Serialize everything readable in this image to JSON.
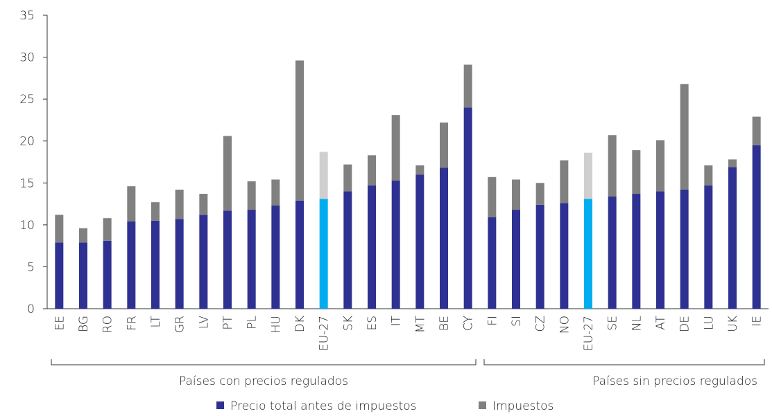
{
  "chart_data": {
    "type": "stacked_bar",
    "groups": [
      {
        "label": "Países con precios regulados",
        "categories": [
          "EE",
          "BG",
          "RO",
          "FR",
          "LT",
          "GR",
          "LV",
          "PT",
          "PL",
          "HU",
          "DK",
          "EU-27",
          "SK",
          "ES",
          "IT",
          "MT",
          "BE",
          "CY"
        ]
      },
      {
        "label": "Países sin precios regulados",
        "categories": [
          "FI",
          "SI",
          "CZ",
          "NO",
          "EU-27",
          "SE",
          "NL",
          "AT",
          "DE",
          "LU",
          "UK",
          "IE"
        ]
      }
    ],
    "series": [
      {
        "name": "Precio total antes de impuestos",
        "color": "#2e3192",
        "colors": [
          "#2e3192",
          "#2e3192",
          "#2e3192",
          "#2e3192",
          "#2e3192",
          "#2e3192",
          "#2e3192",
          "#2e3192",
          "#2e3192",
          "#2e3192",
          "#2e3192",
          "#00aeef",
          "#2e3192",
          "#2e3192",
          "#2e3192",
          "#2e3192",
          "#2e3192",
          "#2e3192",
          "#2e3192",
          "#2e3192",
          "#2e3192",
          "#2e3192",
          "#00aeef",
          "#2e3192",
          "#2e3192",
          "#2e3192",
          "#2e3192",
          "#2e3192",
          "#2e3192",
          "#2e3192"
        ],
        "values": [
          7.9,
          7.9,
          8.1,
          10.4,
          10.5,
          10.7,
          11.2,
          11.7,
          11.8,
          12.3,
          12.9,
          13.1,
          14.0,
          14.7,
          15.3,
          16.0,
          16.8,
          24.0,
          10.9,
          11.8,
          12.4,
          12.6,
          13.1,
          13.4,
          13.7,
          14.0,
          14.2,
          14.7,
          16.9,
          19.5
        ]
      },
      {
        "name": "Impuestos",
        "color": "#808080",
        "colors": [
          "#808080",
          "#808080",
          "#808080",
          "#808080",
          "#808080",
          "#808080",
          "#808080",
          "#808080",
          "#808080",
          "#808080",
          "#808080",
          "#cfcfcf",
          "#808080",
          "#808080",
          "#808080",
          "#808080",
          "#808080",
          "#808080",
          "#808080",
          "#808080",
          "#808080",
          "#808080",
          "#cfcfcf",
          "#808080",
          "#808080",
          "#808080",
          "#808080",
          "#808080",
          "#808080",
          "#808080"
        ],
        "values": [
          3.3,
          1.7,
          2.7,
          4.2,
          2.2,
          3.5,
          2.5,
          8.9,
          3.4,
          3.1,
          16.7,
          5.6,
          3.2,
          3.6,
          7.8,
          1.1,
          5.4,
          5.1,
          4.8,
          3.6,
          2.6,
          5.1,
          5.5,
          7.3,
          5.2,
          6.1,
          12.6,
          2.4,
          0.9,
          3.4
        ]
      }
    ],
    "ylim": [
      0,
      35
    ],
    "yticks": [
      0,
      5,
      10,
      15,
      20,
      25,
      30,
      35
    ],
    "grid": false,
    "legend": "bottom"
  }
}
